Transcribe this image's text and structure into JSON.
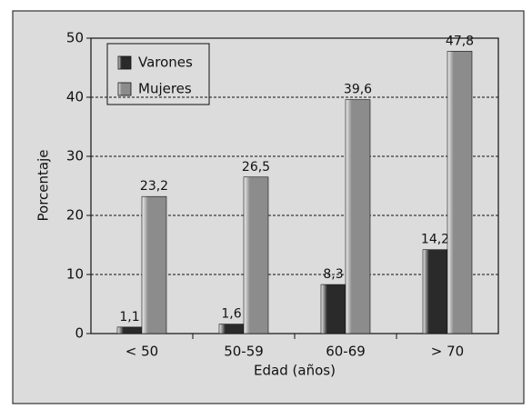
{
  "chart_data": {
    "type": "bar",
    "x_label": "Edad (años)",
    "y_label": "Porcentaje",
    "categories": [
      "< 50",
      "50-59",
      "60-69",
      "> 70"
    ],
    "series": [
      {
        "name": "Varones",
        "color": "#2a2a2a",
        "values": [
          1.1,
          1.6,
          8.3,
          14.2
        ],
        "value_labels": [
          "1,1",
          "1,6",
          "8,3",
          "14,2"
        ]
      },
      {
        "name": "Mujeres",
        "color": "#8c8c8c",
        "values": [
          23.2,
          26.5,
          39.6,
          47.8
        ],
        "value_labels": [
          "23,2",
          "26,5",
          "39,6",
          "47,8"
        ]
      }
    ],
    "ylim": [
      0,
      50
    ],
    "yticks": [
      0,
      10,
      20,
      30,
      40,
      50
    ],
    "grid": true,
    "legend": "upper left"
  }
}
